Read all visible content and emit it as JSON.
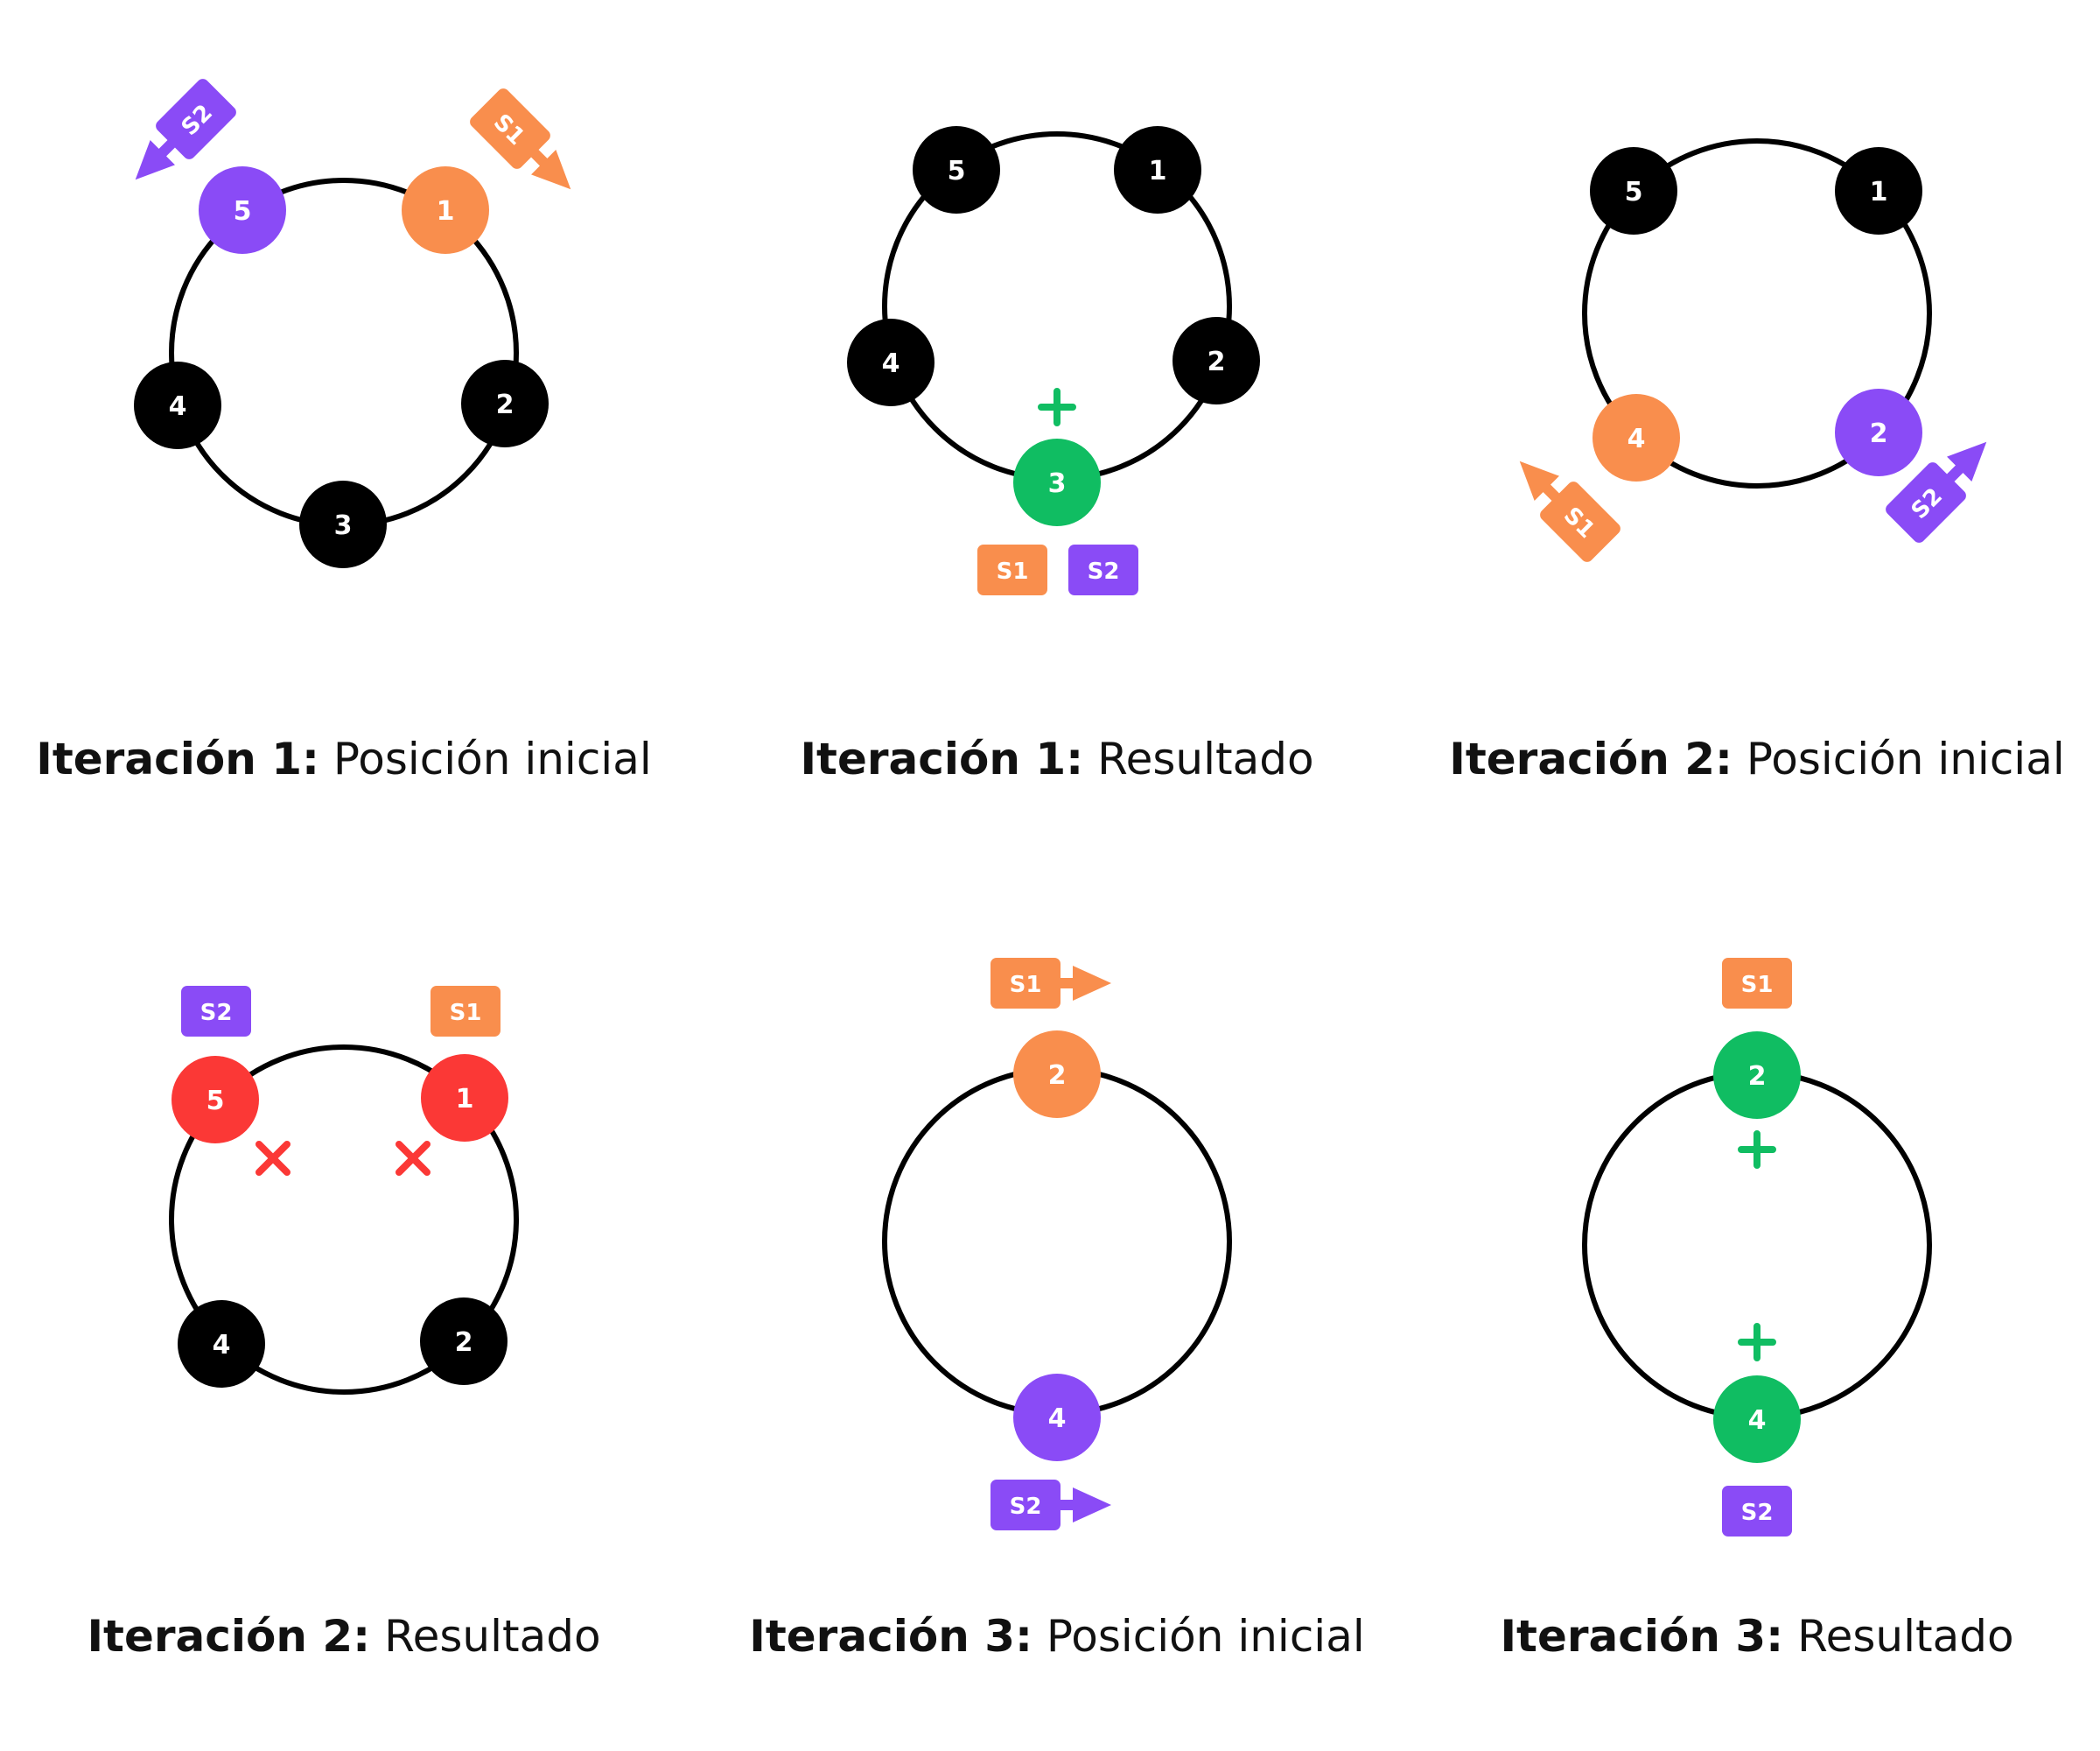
{
  "colors": {
    "black": "#000000",
    "orange": "#F98E4D",
    "purple": "#8A4BF6",
    "green": "#10BD62",
    "red": "#FB3836"
  },
  "panels": [
    {
      "id": "iter1-initial",
      "caption_bold": "Iteración 1:",
      "caption_rest": "Posición inicial",
      "nodes": [
        {
          "label": "5",
          "color": "purple"
        },
        {
          "label": "1",
          "color": "orange"
        },
        {
          "label": "4",
          "color": "black"
        },
        {
          "label": "2",
          "color": "black"
        },
        {
          "label": "3",
          "color": "black"
        }
      ],
      "tags": [
        {
          "label": "S2",
          "color": "purple"
        },
        {
          "label": "S1",
          "color": "orange"
        }
      ]
    },
    {
      "id": "iter1-result",
      "caption_bold": "Iteración 1:",
      "caption_rest": "Resultado",
      "nodes": [
        {
          "label": "5",
          "color": "black"
        },
        {
          "label": "1",
          "color": "black"
        },
        {
          "label": "4",
          "color": "black"
        },
        {
          "label": "2",
          "color": "black"
        },
        {
          "label": "3",
          "color": "green"
        }
      ],
      "tags": [
        {
          "label": "S1",
          "color": "orange"
        },
        {
          "label": "S2",
          "color": "purple"
        }
      ]
    },
    {
      "id": "iter2-initial",
      "caption_bold": "Iteración 2:",
      "caption_rest": "Posición inicial",
      "nodes": [
        {
          "label": "5",
          "color": "black"
        },
        {
          "label": "1",
          "color": "black"
        },
        {
          "label": "4",
          "color": "orange"
        },
        {
          "label": "2",
          "color": "purple"
        }
      ],
      "tags": [
        {
          "label": "S1",
          "color": "orange"
        },
        {
          "label": "S2",
          "color": "purple"
        }
      ]
    },
    {
      "id": "iter2-result",
      "caption_bold": "Iteración 2:",
      "caption_rest": "Resultado",
      "nodes": [
        {
          "label": "5",
          "color": "red"
        },
        {
          "label": "1",
          "color": "red"
        },
        {
          "label": "4",
          "color": "black"
        },
        {
          "label": "2",
          "color": "black"
        }
      ],
      "tags": [
        {
          "label": "S2",
          "color": "purple"
        },
        {
          "label": "S1",
          "color": "orange"
        }
      ]
    },
    {
      "id": "iter3-initial",
      "caption_bold": "Iteración 3:",
      "caption_rest": "Posición inicial",
      "nodes": [
        {
          "label": "2",
          "color": "orange"
        },
        {
          "label": "4",
          "color": "purple"
        }
      ],
      "tags": [
        {
          "label": "S1",
          "color": "orange"
        },
        {
          "label": "S2",
          "color": "purple"
        }
      ]
    },
    {
      "id": "iter3-result",
      "caption_bold": "Iteración 3:",
      "caption_rest": "Resultado",
      "nodes": [
        {
          "label": "2",
          "color": "green"
        },
        {
          "label": "4",
          "color": "green"
        }
      ],
      "tags": [
        {
          "label": "S1",
          "color": "orange"
        },
        {
          "label": "S2",
          "color": "purple"
        }
      ]
    }
  ]
}
